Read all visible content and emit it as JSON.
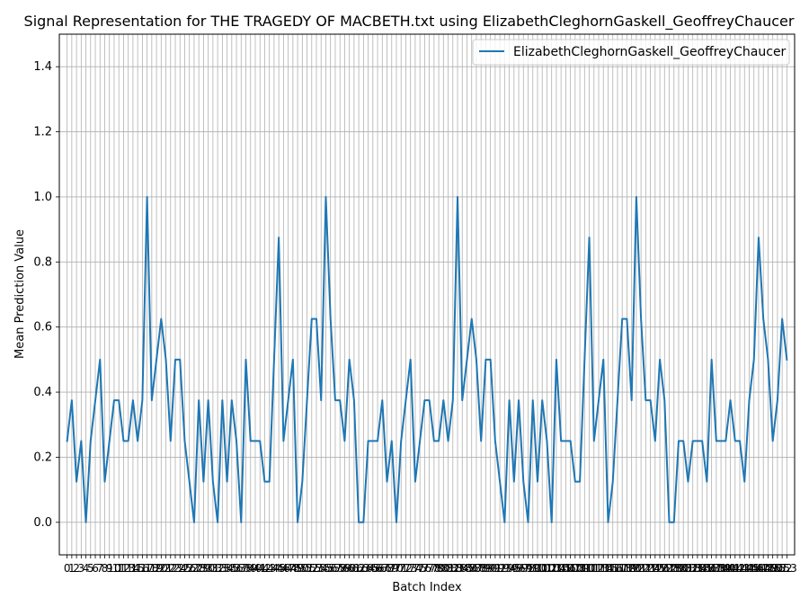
{
  "chart_data": {
    "type": "line",
    "title": "Signal Representation for THE TRAGEDY OF MACBETH.txt using ElizabethCleghornGaskell_GeoffreyChaucer",
    "xlabel": "Batch Index",
    "ylabel": "Mean Prediction Value",
    "ylim": [
      -0.1,
      1.5
    ],
    "xlim": [
      -1.65,
      154.65
    ],
    "yticks": [
      0.0,
      0.2,
      0.4,
      0.6,
      0.8,
      1.0,
      1.2,
      1.4
    ],
    "ytick_labels": [
      "0.0",
      "0.2",
      "0.4",
      "0.6",
      "0.8",
      "1.0",
      "1.2",
      "1.4"
    ],
    "grid": true,
    "legend": {
      "placement": "top-right"
    },
    "series": [
      {
        "name": "ElizabethCleghornGaskell_GeoffreyChaucer",
        "color": "#1f77b4",
        "x": [
          0,
          1,
          2,
          3,
          4,
          5,
          6,
          7,
          8,
          9,
          10,
          11,
          12,
          13,
          14,
          15,
          16,
          17,
          18,
          19,
          20,
          21,
          22,
          23,
          24,
          25,
          26,
          27,
          28,
          29,
          30,
          31,
          32,
          33,
          34,
          35,
          36,
          37,
          38,
          39,
          40,
          41,
          42,
          43,
          44,
          45,
          46,
          47,
          48,
          49,
          50,
          51,
          52,
          53,
          54,
          55,
          56,
          57,
          58,
          59,
          60,
          61,
          62,
          63,
          64,
          65,
          66,
          67,
          68,
          69,
          70,
          71,
          72,
          73,
          74,
          75,
          76,
          77,
          78,
          79,
          80,
          81,
          82,
          83,
          84,
          85,
          86,
          87,
          88,
          89,
          90,
          91,
          92,
          93,
          94,
          95,
          96,
          97,
          98,
          99,
          100,
          101,
          102,
          103,
          104,
          105,
          106,
          107,
          108,
          109,
          110,
          111,
          112,
          113,
          114,
          115,
          116,
          117,
          118,
          119,
          120,
          121,
          122,
          123,
          124,
          125,
          126,
          127,
          128,
          129,
          130,
          131,
          132,
          133,
          134,
          135,
          136,
          137,
          138,
          139,
          140,
          141,
          142,
          143,
          144,
          145,
          146,
          147,
          148,
          149,
          150,
          151,
          152,
          153
        ],
        "values": [
          0.25,
          0.375,
          0.125,
          0.25,
          0.0,
          0.25,
          0.375,
          0.5,
          0.125,
          0.25,
          0.375,
          0.375,
          0.25,
          0.25,
          0.375,
          0.25,
          0.375,
          1.0,
          0.375,
          0.5,
          0.625,
          0.5,
          0.25,
          0.5,
          0.5,
          0.25,
          0.125,
          0.0,
          0.375,
          0.125,
          0.375,
          0.125,
          0.0,
          0.375,
          0.125,
          0.375,
          0.25,
          0.0,
          0.5,
          0.25,
          0.25,
          0.25,
          0.125,
          0.125,
          0.5,
          0.875,
          0.25,
          0.375,
          0.5,
          0.0,
          0.125,
          0.375,
          0.625,
          0.625,
          0.375,
          1.0,
          0.625,
          0.375,
          0.375,
          0.25,
          0.5,
          0.375,
          0.0,
          0.0,
          0.25,
          0.25,
          0.25,
          0.375,
          0.125,
          0.25,
          0.0,
          0.25,
          0.375,
          0.5,
          0.125,
          0.25,
          0.375,
          0.375,
          0.25,
          0.25,
          0.375,
          0.25,
          0.375,
          1.0,
          0.375,
          0.5,
          0.625,
          0.5,
          0.25,
          0.5,
          0.5,
          0.25,
          0.125,
          0.0,
          0.375,
          0.125,
          0.375,
          0.125,
          0.0,
          0.375,
          0.125,
          0.375,
          0.25,
          0.0,
          0.5,
          0.25,
          0.25,
          0.25,
          0.125,
          0.125,
          0.5,
          0.875,
          0.25,
          0.375,
          0.5,
          0.0,
          0.125,
          0.375,
          0.625,
          0.625,
          0.375,
          1.0,
          0.625,
          0.375,
          0.375,
          0.25,
          0.5,
          0.375,
          0.0,
          0.0,
          0.25,
          0.25,
          0.125,
          0.25,
          0.25,
          0.25,
          0.125,
          0.5,
          0.25,
          0.25,
          0.25,
          0.375,
          0.25,
          0.25,
          0.125,
          0.375,
          0.5,
          0.875,
          0.625,
          0.5,
          0.25,
          0.375,
          0.625,
          0.5
        ]
      }
    ]
  }
}
